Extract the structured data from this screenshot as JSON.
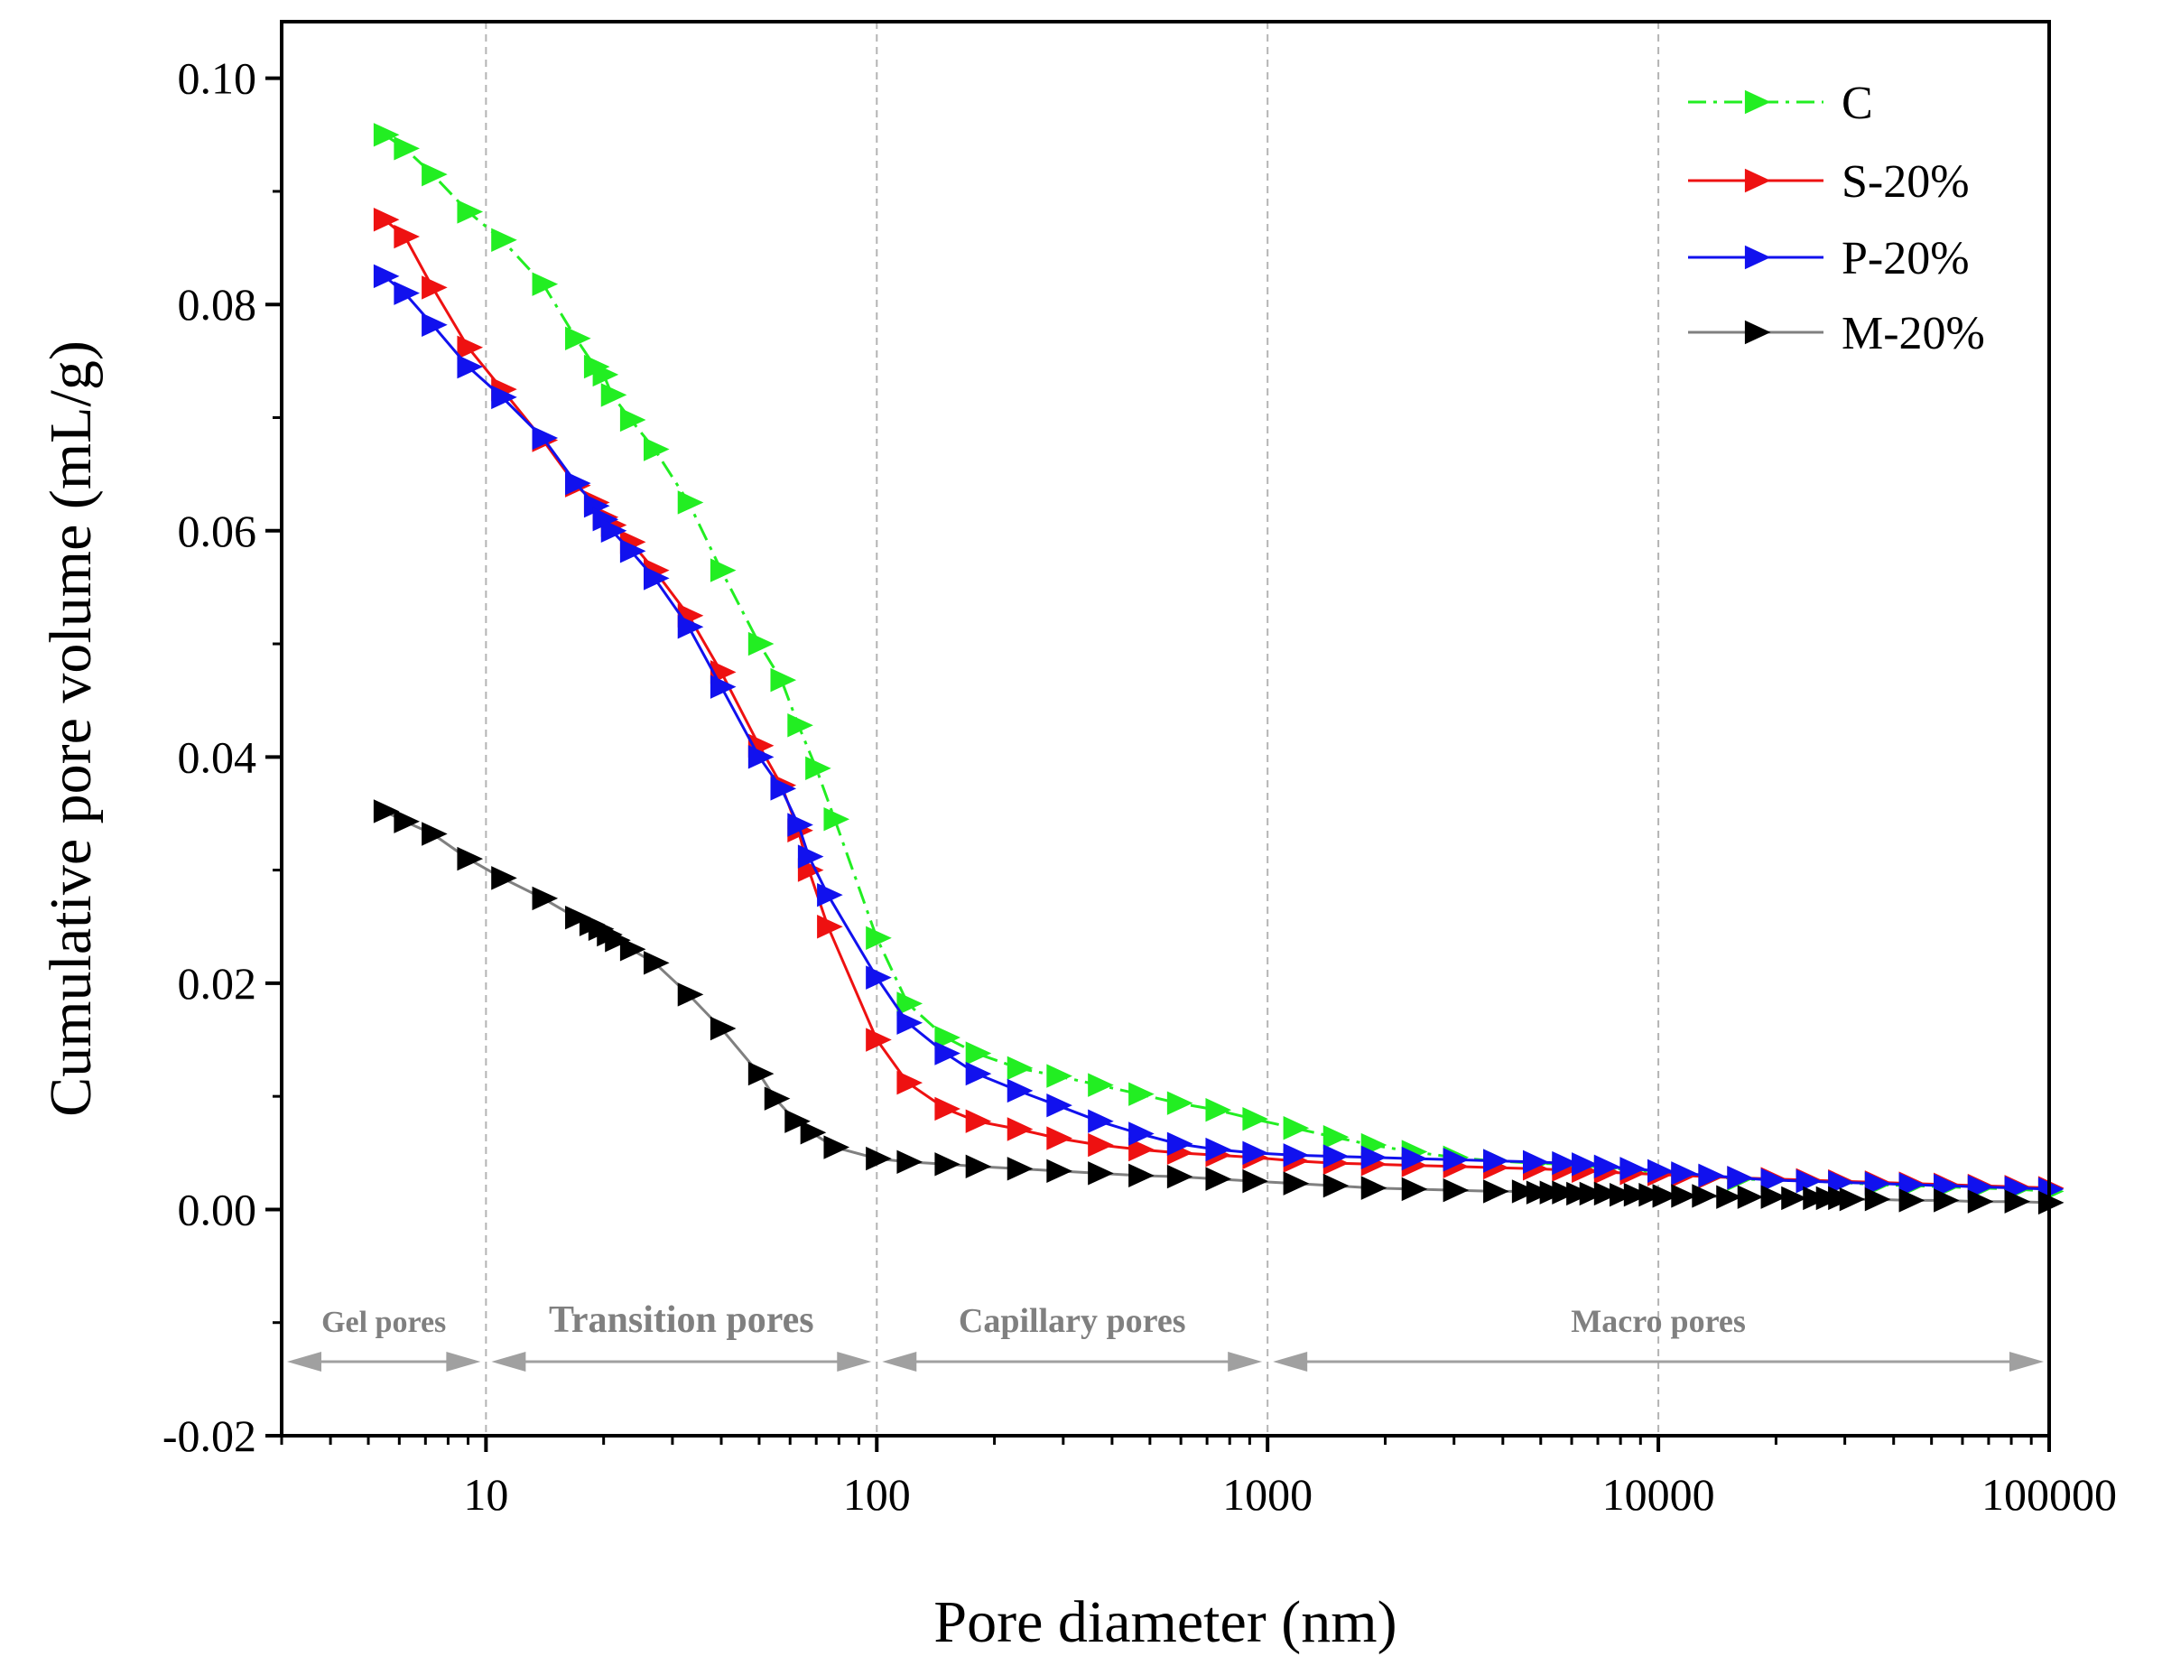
{
  "chart_data": {
    "type": "line",
    "xlabel": "Pore diameter (nm)",
    "ylabel": "Cumulative pore volume (mL/g)",
    "x_scale": "log",
    "xlim": [
      3,
      100000
    ],
    "ylim": [
      -0.02,
      0.105
    ],
    "x_ticks": [
      {
        "value": 10,
        "label": "10"
      },
      {
        "value": 100,
        "label": "100"
      },
      {
        "value": 1000,
        "label": "1000"
      },
      {
        "value": 10000,
        "label": "10000"
      },
      {
        "value": 100000,
        "label": "100000"
      }
    ],
    "y_ticks": [
      {
        "value": -0.02,
        "label": "-0.02"
      },
      {
        "value": 0.0,
        "label": "0.00"
      },
      {
        "value": 0.02,
        "label": "0.02"
      },
      {
        "value": 0.04,
        "label": "0.04"
      },
      {
        "value": 0.06,
        "label": "0.06"
      },
      {
        "value": 0.08,
        "label": "0.08"
      },
      {
        "value": 0.1,
        "label": "0.10"
      }
    ],
    "grid": "vertical dashed at decades",
    "legend_position": "top-right",
    "regions": [
      {
        "label": "Gel pores",
        "from": 3,
        "to": 10
      },
      {
        "label": "Transition pores",
        "from": 10,
        "to": 100
      },
      {
        "label": "Capillary pores",
        "from": 100,
        "to": 1000
      },
      {
        "label": "Macro pores",
        "from": 1000,
        "to": 100000
      }
    ],
    "series": [
      {
        "name": "C",
        "color": "#22ee22",
        "line_style": "dash-dot",
        "marker": "right-triangle",
        "x": [
          5.5,
          6.2,
          7.3,
          9,
          11,
          14,
          17,
          19,
          20,
          21,
          23.5,
          27,
          33,
          40,
          50,
          57,
          63,
          70,
          78,
          100,
          120,
          150,
          180,
          230,
          290,
          370,
          470,
          590,
          740,
          920,
          1170,
          1480,
          1850,
          2350,
          3000,
          3800,
          4800,
          5700,
          6400,
          7300,
          8500,
          10000,
          11500,
          13500,
          16000,
          19500,
          24000,
          29000,
          36000,
          44000,
          54000,
          66000,
          82000,
          100000
        ],
        "y": [
          0.095,
          0.0938,
          0.0915,
          0.0882,
          0.0857,
          0.0818,
          0.077,
          0.0745,
          0.0738,
          0.072,
          0.0698,
          0.0672,
          0.0625,
          0.0565,
          0.05,
          0.0468,
          0.0428,
          0.039,
          0.0345,
          0.024,
          0.0182,
          0.0152,
          0.0138,
          0.0125,
          0.0118,
          0.011,
          0.0102,
          0.0094,
          0.0088,
          0.008,
          0.0072,
          0.0064,
          0.0057,
          0.0051,
          0.0046,
          0.0043,
          0.0041,
          0.004,
          0.0039,
          0.0037,
          0.0035,
          0.0033,
          0.0031,
          0.0029,
          0.0027,
          0.0026,
          0.0025,
          0.0024,
          0.0022,
          0.0021,
          0.002,
          0.0019,
          0.0018,
          0.0016
        ]
      },
      {
        "name": "S-20%",
        "color": "#ee1111",
        "line_style": "solid",
        "marker": "right-triangle",
        "x": [
          5.5,
          6.2,
          7.3,
          9,
          11,
          14,
          17,
          19,
          20,
          21,
          23.5,
          27,
          33,
          40,
          50,
          57,
          63,
          67,
          75,
          100,
          120,
          150,
          180,
          230,
          290,
          370,
          470,
          590,
          740,
          920,
          1170,
          1480,
          1850,
          2350,
          3000,
          3800,
          4800,
          5700,
          6400,
          7300,
          8500,
          10000,
          11500,
          13500,
          16000,
          19500,
          24000,
          29000,
          36000,
          44000,
          54000,
          66000,
          82000,
          100000
        ],
        "y": [
          0.0875,
          0.086,
          0.0815,
          0.0762,
          0.0725,
          0.068,
          0.064,
          0.0625,
          0.0612,
          0.0605,
          0.059,
          0.0565,
          0.0525,
          0.0475,
          0.041,
          0.0375,
          0.0335,
          0.03,
          0.025,
          0.015,
          0.0112,
          0.0089,
          0.0078,
          0.0071,
          0.0063,
          0.0057,
          0.0053,
          0.005,
          0.0048,
          0.0046,
          0.0043,
          0.0041,
          0.004,
          0.0039,
          0.0038,
          0.0037,
          0.0036,
          0.0035,
          0.0034,
          0.0033,
          0.0032,
          0.0031,
          0.003,
          0.0029,
          0.0028,
          0.0027,
          0.0026,
          0.0025,
          0.0024,
          0.0023,
          0.0022,
          0.0021,
          0.002,
          0.0019
        ]
      },
      {
        "name": "P-20%",
        "color": "#1111ee",
        "line_style": "solid",
        "marker": "right-triangle",
        "x": [
          5.5,
          6.2,
          7.3,
          9,
          11,
          14,
          17,
          19,
          20,
          21,
          23.5,
          27,
          33,
          40,
          50,
          57,
          63,
          67,
          75,
          100,
          120,
          150,
          180,
          230,
          290,
          370,
          470,
          590,
          740,
          920,
          1170,
          1480,
          1850,
          2350,
          3000,
          3800,
          4800,
          5700,
          6400,
          7300,
          8500,
          10000,
          11500,
          13500,
          16000,
          19500,
          24000,
          29000,
          36000,
          44000,
          54000,
          66000,
          82000,
          100000
        ],
        "y": [
          0.0825,
          0.081,
          0.0782,
          0.0745,
          0.0718,
          0.0682,
          0.0642,
          0.0622,
          0.061,
          0.06,
          0.0582,
          0.0558,
          0.0515,
          0.0462,
          0.04,
          0.0372,
          0.034,
          0.0312,
          0.0278,
          0.0205,
          0.0165,
          0.0138,
          0.012,
          0.0105,
          0.0092,
          0.0078,
          0.0067,
          0.0058,
          0.0053,
          0.005,
          0.0048,
          0.0047,
          0.0046,
          0.0045,
          0.0044,
          0.0043,
          0.0042,
          0.0041,
          0.004,
          0.0038,
          0.0036,
          0.0034,
          0.0032,
          0.003,
          0.0028,
          0.0026,
          0.0025,
          0.0024,
          0.0023,
          0.0022,
          0.0021,
          0.002,
          0.0019,
          0.0018
        ]
      },
      {
        "name": "M-20%",
        "color": "#000000",
        "line_color": "#808080",
        "line_style": "solid",
        "marker": "right-triangle",
        "x": [
          5.5,
          6.2,
          7.3,
          9,
          11,
          14,
          17,
          18.5,
          19.5,
          20.5,
          21.5,
          23.5,
          27,
          33,
          40,
          50,
          55,
          62,
          68,
          78,
          100,
          120,
          150,
          180,
          230,
          290,
          370,
          470,
          590,
          740,
          920,
          1170,
          1480,
          1850,
          2350,
          3000,
          3800,
          4500,
          4900,
          5300,
          5700,
          6200,
          6700,
          7300,
          8000,
          8700,
          9500,
          10300,
          11500,
          13000,
          15000,
          17000,
          19500,
          22000,
          25000,
          27000,
          29000,
          31000,
          36000,
          44000,
          54000,
          66000,
          82000,
          100000
        ],
        "y": [
          0.0352,
          0.0343,
          0.0332,
          0.031,
          0.0293,
          0.0275,
          0.0258,
          0.0252,
          0.0248,
          0.0243,
          0.0238,
          0.023,
          0.0218,
          0.019,
          0.016,
          0.012,
          0.0098,
          0.0078,
          0.0068,
          0.0055,
          0.0045,
          0.0042,
          0.004,
          0.0038,
          0.0036,
          0.0034,
          0.0032,
          0.003,
          0.0029,
          0.0027,
          0.0025,
          0.0023,
          0.0021,
          0.0019,
          0.0018,
          0.0017,
          0.0016,
          0.0016,
          0.0015,
          0.0015,
          0.0015,
          0.0014,
          0.0014,
          0.0014,
          0.0013,
          0.0013,
          0.0013,
          0.0012,
          0.0012,
          0.0012,
          0.0011,
          0.0011,
          0.0011,
          0.001,
          0.001,
          0.001,
          0.001,
          0.0009,
          0.0009,
          0.0008,
          0.0008,
          0.0007,
          0.0007,
          0.0006
        ]
      }
    ]
  }
}
